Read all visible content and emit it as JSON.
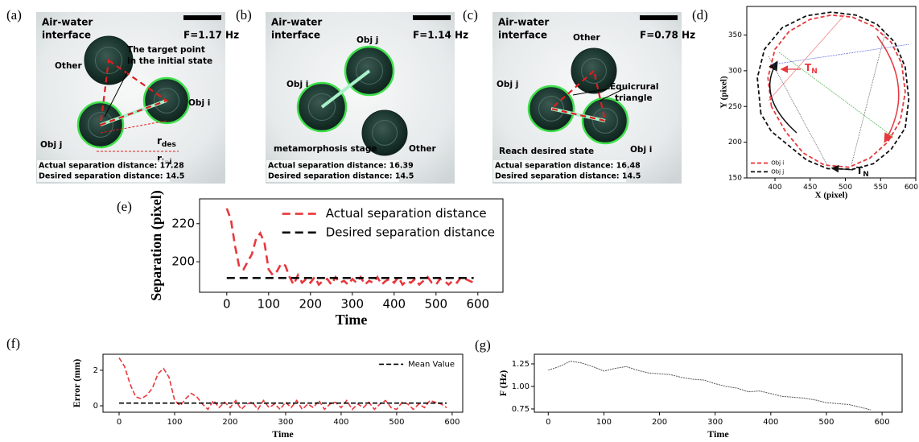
{
  "photos": [
    {
      "panel_label": "(a)",
      "title": [
        "Air-water",
        "interface"
      ],
      "frequency": "F=1.17 Hz",
      "annotations": [
        "Other",
        "The target point",
        "in the initial state",
        "Obj i",
        "Obj j",
        {
          "text": "r",
          "subscript": "des"
        },
        {
          "text": "r",
          "subscript": "ini"
        }
      ],
      "status": [
        "Actual separation distance: 17.28",
        "Desired separation distance: 14.5"
      ]
    },
    {
      "panel_label": "(b)",
      "title": [
        "Air-water",
        "interface"
      ],
      "frequency": "F=1.14 Hz",
      "annotations": [
        "Obj j",
        "Obj i",
        "metamorphosis stage",
        "Other"
      ],
      "status": [
        "Actual separation distance: 16.39",
        "Desired separation distance: 14.5"
      ]
    },
    {
      "panel_label": "(c)",
      "title": [
        "Air-water",
        "interface"
      ],
      "frequency": "F=0.78 Hz",
      "annotations": [
        "Other",
        "Obj j",
        "Equicrural",
        "triangle",
        "Reach desired state",
        "Obj i"
      ],
      "status": [
        "Actual separation distance: 16.48",
        "Desired separation distance: 14.5"
      ]
    }
  ],
  "chart_data": [
    {
      "type": "line",
      "panel_label": "(d)",
      "x_label": "X (pixel)",
      "y_label": "Y (pixel)",
      "xlim": [
        360,
        600
      ],
      "ylim": [
        150,
        390
      ],
      "xticks": [
        400,
        450,
        500,
        550,
        600
      ],
      "yticks": [
        150,
        200,
        250,
        300,
        350
      ],
      "legend_loc": "lower left",
      "series": [
        {
          "name": "Obj i",
          "color": "#e8383d",
          "x": [
            395,
            390,
            400,
            420,
            450,
            480,
            510,
            540,
            565,
            580,
            585,
            578,
            560,
            535,
            505,
            470,
            440,
            415,
            395
          ],
          "values": [
            250,
            290,
            330,
            355,
            372,
            378,
            375,
            362,
            340,
            310,
            270,
            230,
            200,
            178,
            165,
            168,
            185,
            215,
            250
          ]
        },
        {
          "name": "Obj j",
          "color": "#111111",
          "x": [
            380,
            375,
            385,
            410,
            445,
            480,
            515,
            545,
            570,
            585,
            590,
            585,
            565,
            540,
            510,
            475,
            445,
            420,
            395,
            380
          ],
          "values": [
            240,
            290,
            330,
            360,
            377,
            382,
            378,
            365,
            340,
            305,
            260,
            220,
            190,
            170,
            162,
            163,
            175,
            195,
            215,
            240
          ]
        }
      ],
      "annotations": [
        {
          "text": "T",
          "subscript": "N",
          "color": "#e8383d"
        },
        {
          "text": "T",
          "subscript": "N",
          "color": "#111111"
        }
      ]
    },
    {
      "type": "line",
      "panel_label": "(e)",
      "x_label": "Time",
      "y_label": "Separation (pixel)",
      "xlim": [
        -65,
        660
      ],
      "ylim": [
        184,
        233
      ],
      "xticks": [
        0,
        100,
        200,
        300,
        400,
        500,
        600
      ],
      "yticks": [
        200,
        220
      ],
      "legend_loc": "upper right",
      "series": [
        {
          "name": "Actual separation distance",
          "color": "#e8383d",
          "x": [
            0,
            10,
            20,
            30,
            40,
            50,
            60,
            70,
            80,
            90,
            100,
            110,
            120,
            130,
            140,
            150,
            160,
            170,
            180,
            190,
            200,
            210,
            220,
            230,
            240,
            250,
            260,
            270,
            280,
            290,
            300,
            310,
            320,
            330,
            340,
            350,
            360,
            370,
            380,
            390,
            400,
            410,
            420,
            430,
            440,
            450,
            460,
            470,
            480,
            490,
            500,
            510,
            520,
            530,
            540,
            550,
            560,
            570,
            580,
            590
          ],
          "values": [
            228,
            222,
            208,
            197,
            196,
            200,
            204,
            212,
            215,
            210,
            196,
            193,
            195,
            199,
            198,
            192,
            188,
            193,
            189,
            191,
            189,
            192,
            188,
            190,
            191,
            188,
            192,
            189,
            190,
            188,
            191,
            189,
            192,
            188,
            190,
            189,
            192,
            188,
            190,
            191,
            189,
            192,
            188,
            190,
            189,
            191,
            188,
            190,
            192,
            189,
            188,
            191,
            190,
            188,
            190,
            189,
            192,
            191,
            190,
            189
          ]
        }
      ],
      "reference_line": {
        "name": "Desired separation distance",
        "value": 191.5,
        "color": "#000000"
      }
    },
    {
      "type": "line",
      "panel_label": "(f)",
      "x_label": "Time",
      "y_label": "Error (mm)",
      "xlim": [
        -29,
        619
      ],
      "ylim": [
        -0.36,
        2.9
      ],
      "xticks": [
        0,
        100,
        200,
        300,
        400,
        500,
        600
      ],
      "yticks": [
        0,
        2
      ],
      "legend_loc": "upper right",
      "series": [
        {
          "color": "#e8383d",
          "x": [
            0,
            10,
            20,
            30,
            40,
            50,
            60,
            70,
            80,
            90,
            100,
            110,
            120,
            130,
            140,
            150,
            160,
            170,
            180,
            190,
            200,
            210,
            220,
            230,
            240,
            250,
            260,
            270,
            280,
            290,
            300,
            310,
            320,
            330,
            340,
            350,
            360,
            370,
            380,
            390,
            400,
            410,
            420,
            430,
            440,
            450,
            460,
            470,
            480,
            490,
            500,
            510,
            520,
            530,
            540,
            550,
            560,
            570,
            580,
            590
          ],
          "values": [
            2.7,
            2.2,
            1.2,
            0.5,
            0.4,
            0.6,
            1,
            1.8,
            2.1,
            1.6,
            0.3,
            0,
            0.4,
            0.7,
            0.5,
            0.1,
            -0.2,
            0.3,
            -0.1,
            0.2,
            -0.1,
            0.3,
            -0.2,
            0.1,
            0.2,
            -0.2,
            0.3,
            -0.1,
            0.1,
            -0.2,
            0.2,
            -0.1,
            0.3,
            -0.2,
            0.1,
            -0.1,
            0.3,
            -0.2,
            0.1,
            0.2,
            -0.1,
            0.3,
            -0.2,
            0.1,
            -0.1,
            0.2,
            -0.2,
            0.1,
            0.3,
            -0.1,
            -0.2,
            0.2,
            0.1,
            -0.2,
            0.1,
            -0.1,
            0.3,
            0.2,
            0.1,
            -0.1
          ]
        }
      ],
      "reference_line": {
        "name": "Mean Value",
        "value": 0.15,
        "color": "#000000"
      }
    },
    {
      "type": "line",
      "panel_label": "(g)",
      "x_label": "Time",
      "y_label": "F (Hz)",
      "xlim": [
        -25,
        636
      ],
      "ylim": [
        0.714,
        1.357
      ],
      "xticks": [
        0,
        100,
        200,
        300,
        400,
        500,
        600
      ],
      "yticks": [
        0.75,
        {
          "value": 1,
          "label": "1.00"
        },
        1.25
      ],
      "series": [
        {
          "color": "#555555",
          "x": [
            0,
            20,
            40,
            60,
            80,
            100,
            120,
            140,
            160,
            180,
            200,
            220,
            240,
            260,
            280,
            300,
            320,
            340,
            360,
            380,
            400,
            420,
            440,
            460,
            480,
            500,
            520,
            540,
            560,
            580
          ],
          "values": [
            1.18,
            1.22,
            1.28,
            1.26,
            1.22,
            1.17,
            1.2,
            1.22,
            1.18,
            1.15,
            1.14,
            1.13,
            1.1,
            1.08,
            1.07,
            1.03,
            1,
            0.98,
            0.94,
            0.95,
            0.92,
            0.89,
            0.88,
            0.87,
            0.85,
            0.82,
            0.81,
            0.8,
            0.77,
            0.74
          ]
        }
      ]
    }
  ]
}
